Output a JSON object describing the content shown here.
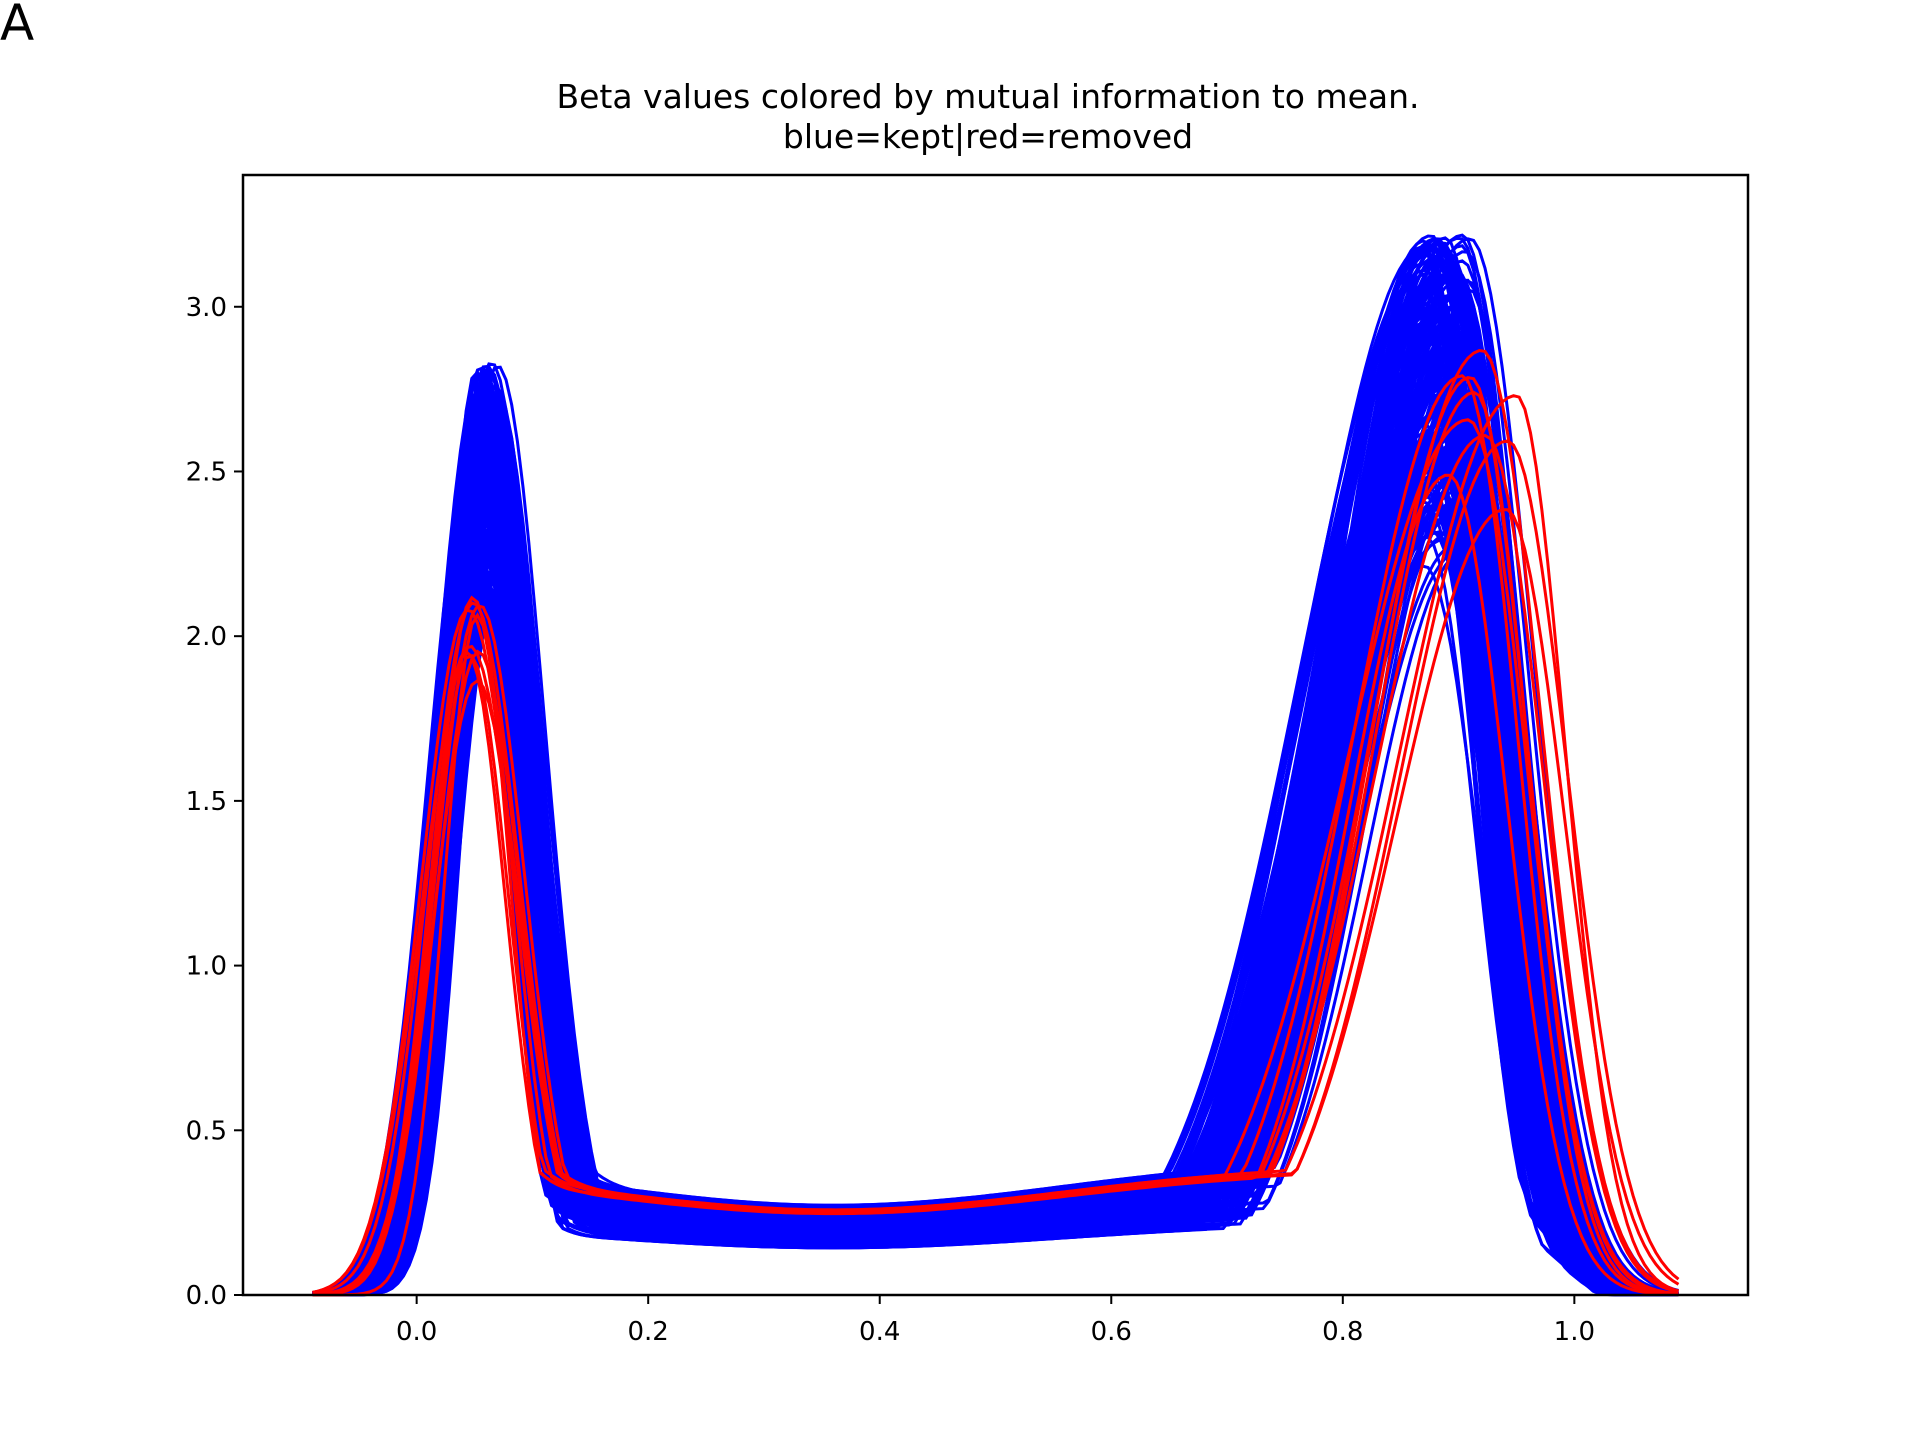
{
  "panel_label": "A",
  "chart_data": {
    "type": "line",
    "title": "Beta values colored by mutual information to mean.",
    "subtitle": "blue=kept|red=removed",
    "xlabel": "",
    "ylabel": "",
    "xlim": [
      -0.15,
      1.15
    ],
    "ylim": [
      0,
      3.4
    ],
    "x_ticks": [
      "0.0",
      "0.2",
      "0.4",
      "0.6",
      "0.8",
      "1.0"
    ],
    "y_ticks": [
      "0.0",
      "0.5",
      "1.0",
      "1.5",
      "2.0",
      "2.5",
      "3.0"
    ],
    "grid": false,
    "colors": {
      "kept": "#0000ff",
      "removed": "#ff0000"
    },
    "groups": [
      {
        "name": "kept",
        "color": "#0000ff",
        "curve_count": 200,
        "left_peak_x": [
          0.05,
          0.07
        ],
        "left_peak_y": [
          2.0,
          2.8
        ],
        "right_peak_x": [
          0.87,
          0.91
        ],
        "right_peak_y": [
          2.2,
          3.23
        ],
        "trough_y": [
          0.22,
          0.42
        ]
      },
      {
        "name": "removed",
        "color": "#ff0000",
        "curve_count": 10,
        "left_peak_x": [
          0.04,
          0.06
        ],
        "left_peak_y": [
          1.75,
          2.1
        ],
        "right_peak_x": [
          0.89,
          0.95
        ],
        "right_peak_y": [
          2.25,
          2.88
        ],
        "trough_y": [
          0.38,
          0.4
        ]
      }
    ]
  }
}
